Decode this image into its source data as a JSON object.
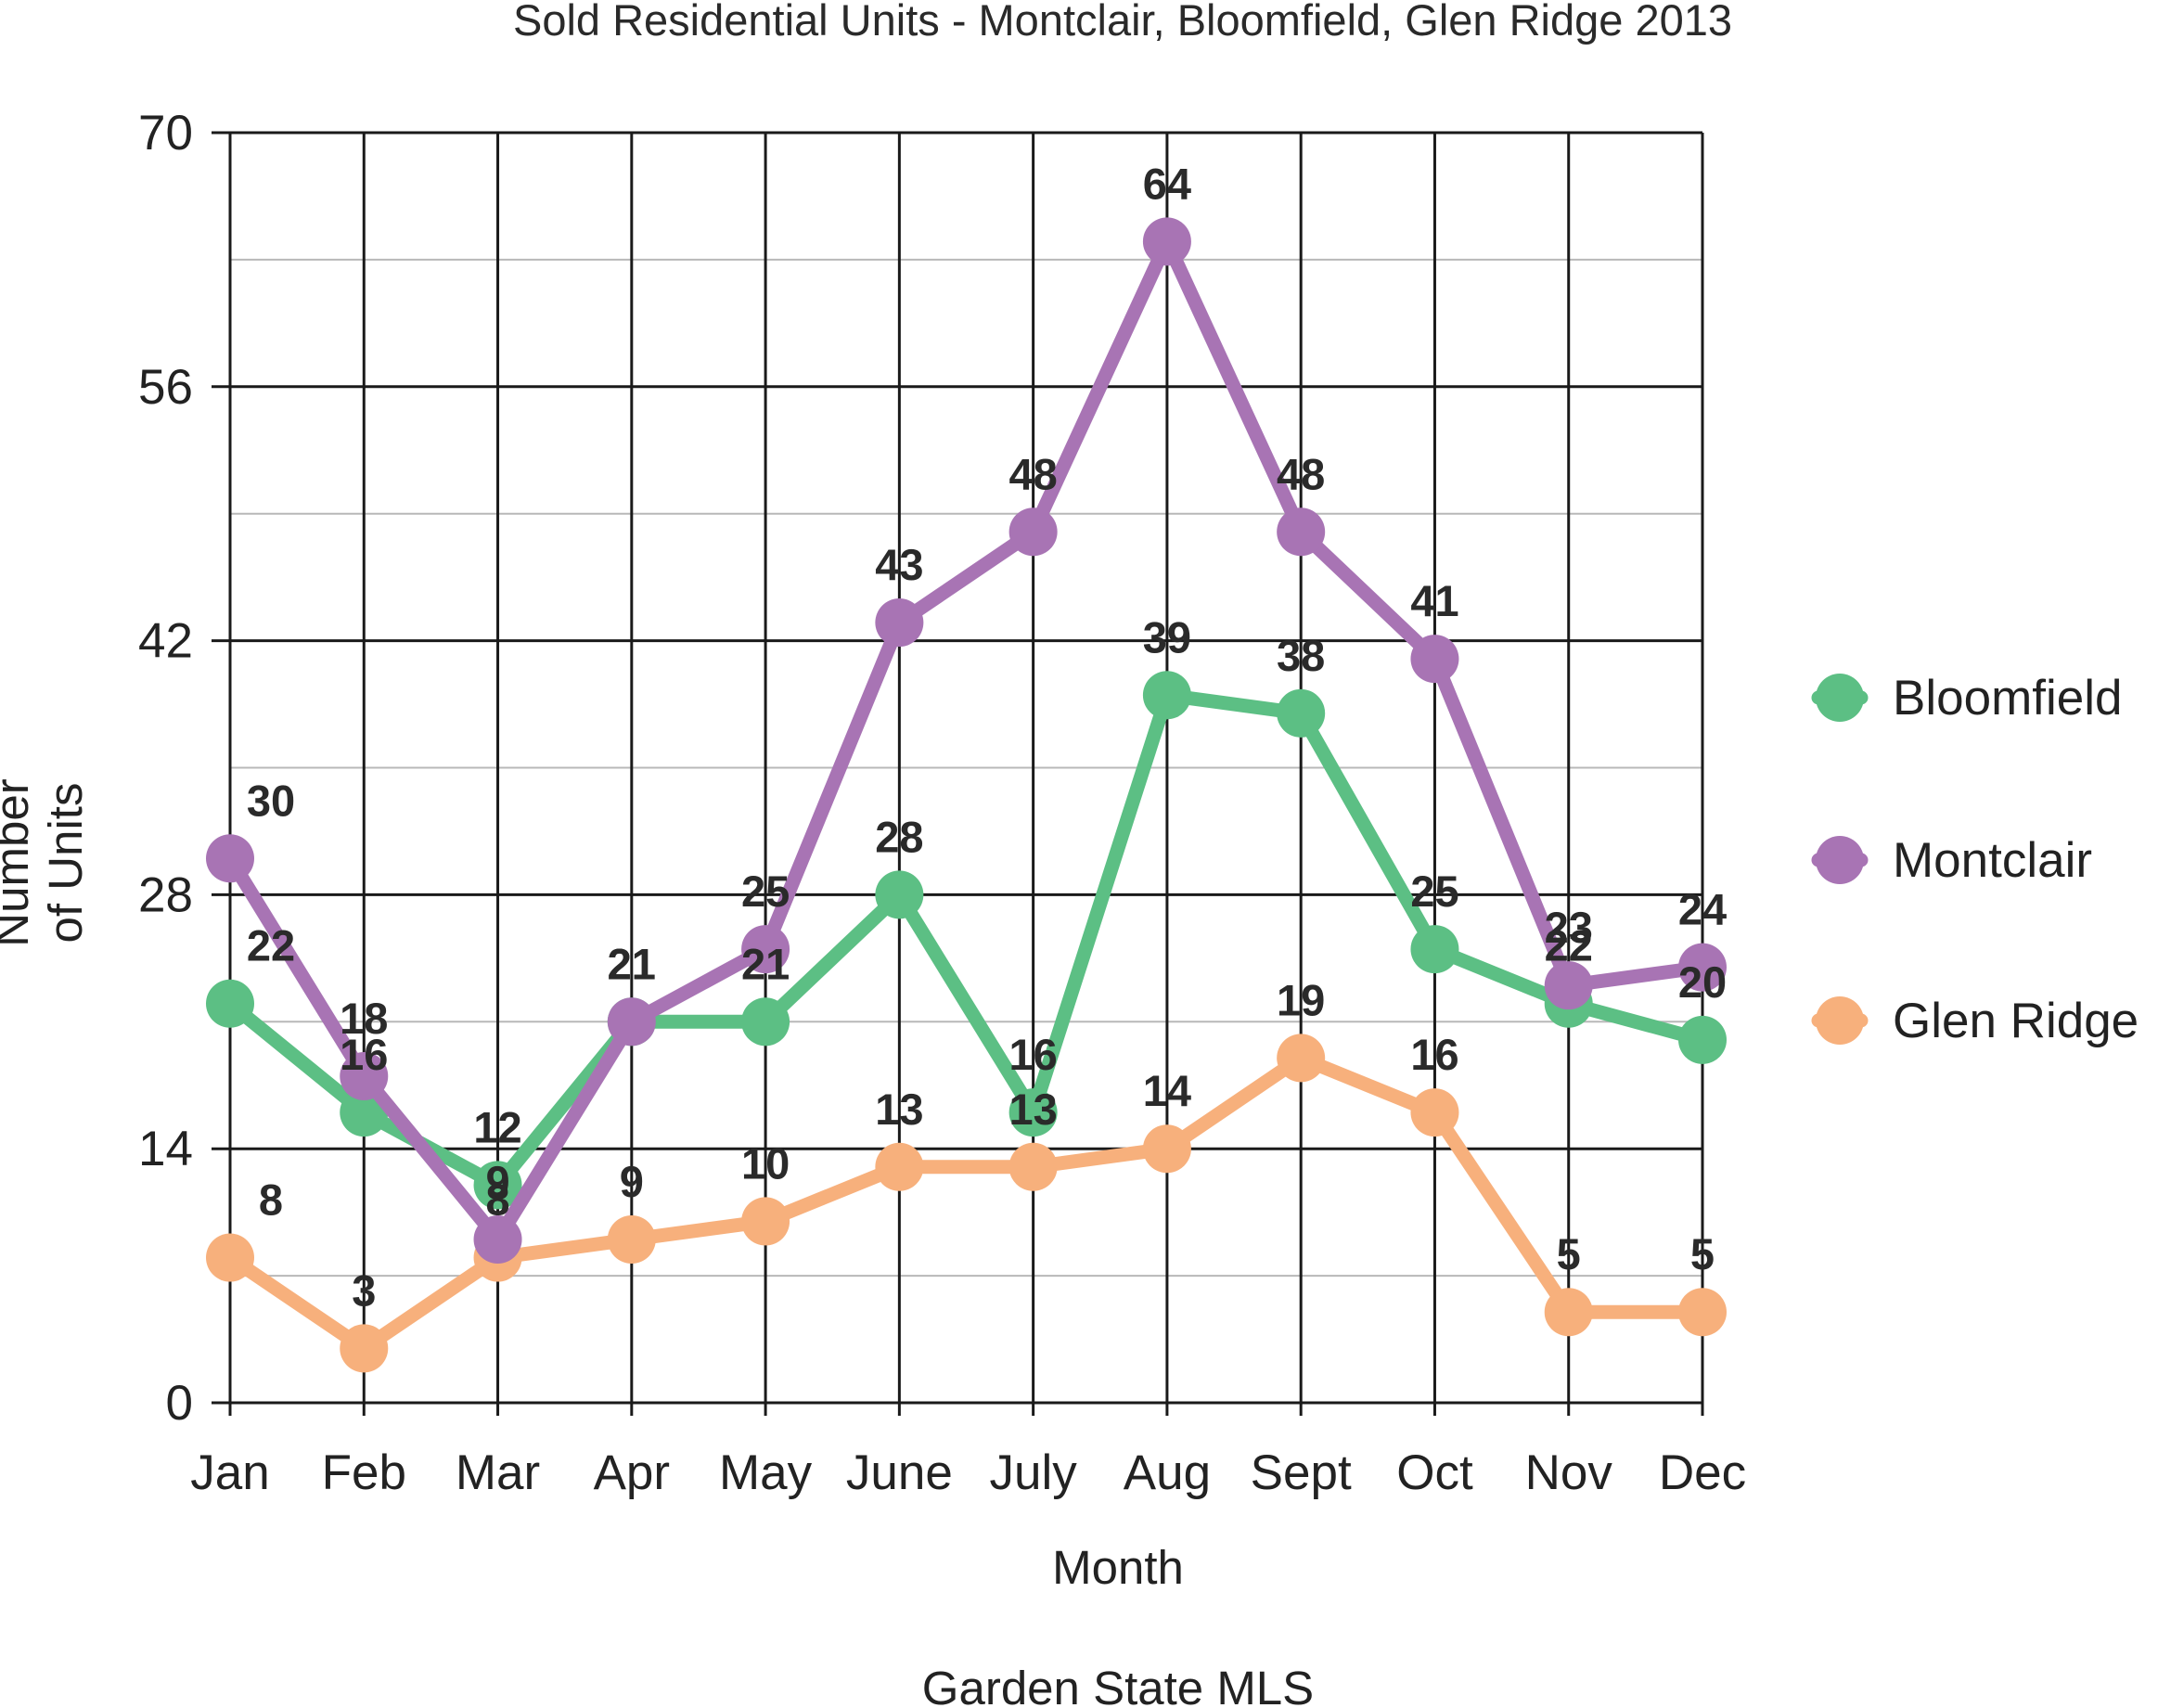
{
  "chart_data": {
    "type": "line",
    "title": "Sold Residential Units - Montclair, Bloomfield, Glen Ridge 2013",
    "xlabel": "Month",
    "ylabel": "Number\nof Units",
    "footer": "Garden State MLS",
    "categories": [
      "Jan",
      "Feb",
      "Mar",
      "Apr",
      "May",
      "June",
      "July",
      "Aug",
      "Sept",
      "Oct",
      "Nov",
      "Dec"
    ],
    "ylim": [
      0,
      70
    ],
    "yticks": [
      0,
      14,
      28,
      42,
      56,
      70
    ],
    "grid": true,
    "legend_position": "right",
    "series": [
      {
        "name": "Bloomfield",
        "color": "#5cbf84",
        "values": [
          22,
          16,
          12,
          21,
          21,
          28,
          16,
          39,
          38,
          25,
          22,
          20
        ]
      },
      {
        "name": "Montclair",
        "color": "#a874b4",
        "values": [
          30,
          18,
          9,
          21,
          25,
          43,
          48,
          64,
          48,
          41,
          23,
          24
        ]
      },
      {
        "name": "Glen Ridge",
        "color": "#f7b07c",
        "values": [
          8,
          3,
          8,
          9,
          10,
          13,
          13,
          14,
          19,
          16,
          5,
          5
        ]
      }
    ]
  }
}
